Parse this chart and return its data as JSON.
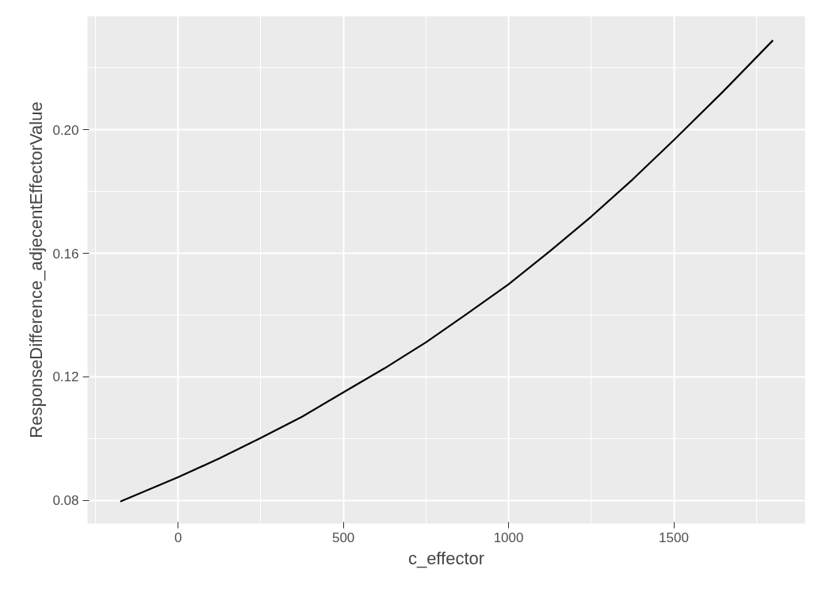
{
  "chart_data": {
    "type": "line",
    "xlabel": "c_effector",
    "ylabel": "ResponseDifference_adjecentEffectorValue",
    "x": [
      -175,
      0,
      125,
      250,
      375,
      500,
      625,
      750,
      875,
      1000,
      1125,
      1250,
      1375,
      1500,
      1650,
      1800
    ],
    "series": [
      {
        "color": "#000000",
        "values": [
          0.0796,
          0.0875,
          0.0936,
          0.1002,
          0.1071,
          0.115,
          0.1228,
          0.1312,
          0.1405,
          0.15,
          0.1607,
          0.1719,
          0.1839,
          0.1967,
          0.2125,
          0.229
        ]
      }
    ],
    "xlim": [
      -274,
      1897
    ],
    "ylim": [
      0.0725,
      0.2368
    ],
    "xticks": [
      0,
      500,
      1000,
      1500
    ],
    "yticks": [
      {
        "value": 0.08,
        "label": "0.08"
      },
      {
        "value": 0.12,
        "label": "0.12"
      },
      {
        "value": 0.16,
        "label": "0.16"
      },
      {
        "value": 0.2,
        "label": "0.20"
      }
    ],
    "grid": true,
    "marker": "none",
    "line_style": "solid"
  }
}
